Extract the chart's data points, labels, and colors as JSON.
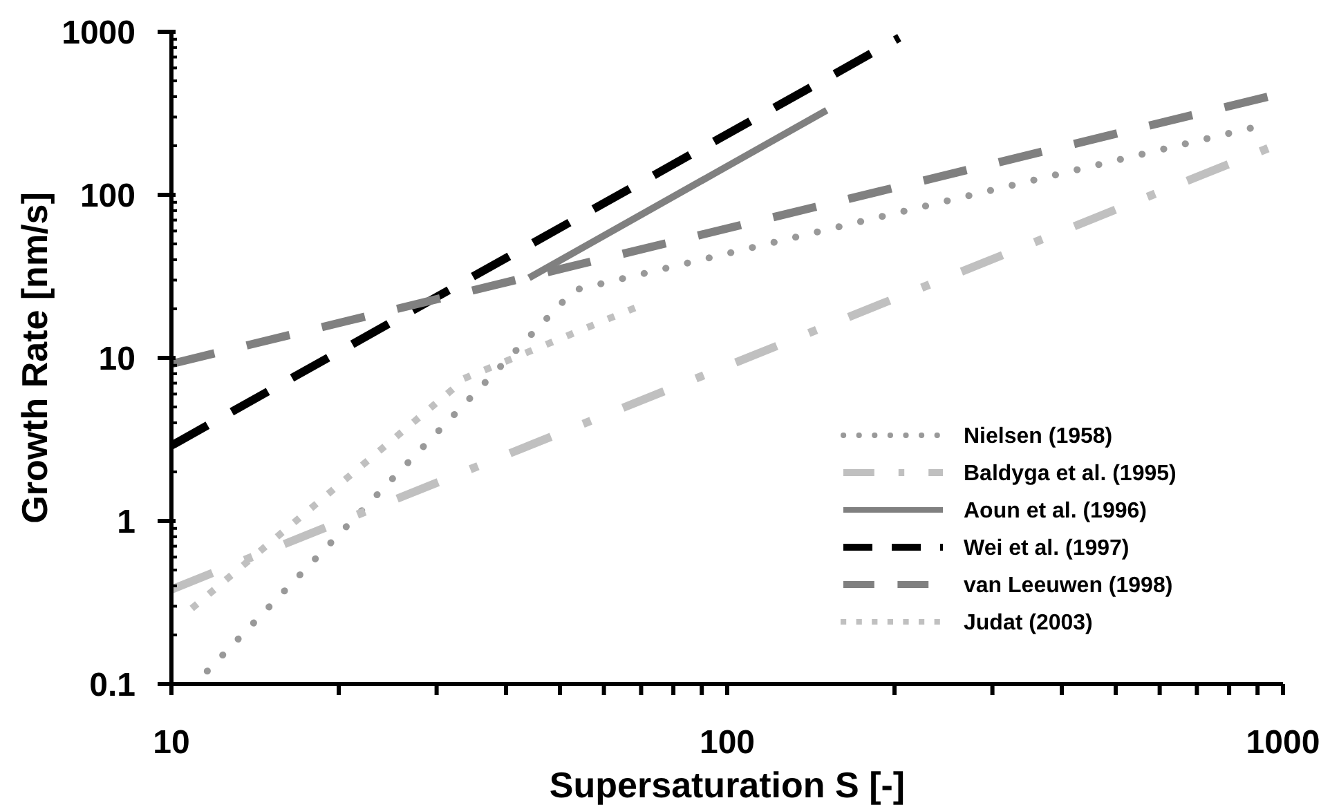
{
  "chart_data": {
    "type": "line",
    "xlabel": "Supersaturation S [-]",
    "ylabel": "Growth Rate [nm/s]",
    "log": "xy",
    "grid": false,
    "legend": "bottom right",
    "xlim": [
      10,
      1000
    ],
    "ylim": [
      0.1,
      1000
    ],
    "xticks": [
      10,
      {
        "value": 20,
        "label": null
      },
      {
        "value": 30,
        "label": null
      },
      {
        "value": 40,
        "label": null
      },
      {
        "value": 50,
        "label": null
      },
      {
        "value": 60,
        "label": null
      },
      {
        "value": 70,
        "label": null
      },
      {
        "value": 80,
        "label": null
      },
      {
        "value": 90,
        "label": null
      },
      100,
      {
        "value": 200,
        "label": null
      },
      {
        "value": 300,
        "label": null
      },
      {
        "value": 400,
        "label": null
      },
      {
        "value": 500,
        "label": null
      },
      {
        "value": 600,
        "label": null
      },
      {
        "value": 700,
        "label": null
      },
      {
        "value": 800,
        "label": null
      },
      {
        "value": 900,
        "label": null
      },
      1000
    ],
    "yticks": [
      0.1,
      {
        "value": 0.2,
        "label": null
      },
      {
        "value": 0.3,
        "label": null
      },
      {
        "value": 0.4,
        "label": null
      },
      {
        "value": 0.5,
        "label": null
      },
      {
        "value": 0.6,
        "label": null
      },
      {
        "value": 0.7,
        "label": null
      },
      {
        "value": 0.8,
        "label": null
      },
      {
        "value": 0.9,
        "label": null
      },
      1,
      {
        "value": 2,
        "label": null
      },
      {
        "value": 3,
        "label": null
      },
      {
        "value": 4,
        "label": null
      },
      {
        "value": 5,
        "label": null
      },
      {
        "value": 6,
        "label": null
      },
      {
        "value": 7,
        "label": null
      },
      {
        "value": 8,
        "label": null
      },
      {
        "value": 9,
        "label": null
      },
      10,
      {
        "value": 20,
        "label": null
      },
      {
        "value": 30,
        "label": null
      },
      {
        "value": 40,
        "label": null
      },
      {
        "value": 50,
        "label": null
      },
      {
        "value": 60,
        "label": null
      },
      {
        "value": 70,
        "label": null
      },
      {
        "value": 80,
        "label": null
      },
      {
        "value": 90,
        "label": null
      },
      100,
      {
        "value": 200,
        "label": null
      },
      {
        "value": 300,
        "label": null
      },
      {
        "value": 400,
        "label": null
      },
      {
        "value": 500,
        "label": null
      },
      {
        "value": 600,
        "label": null
      },
      {
        "value": 700,
        "label": null
      },
      {
        "value": 800,
        "label": null
      },
      {
        "value": 900,
        "label": null
      },
      1000
    ],
    "series": [
      {
        "name": "Nielsen (1958)",
        "color": "#999999",
        "line_style": "dotted",
        "x": [
          11.6,
          53,
          890
        ],
        "values": [
          0.12,
          26,
          260
        ]
      },
      {
        "name": "Baldyga et al. (1995)",
        "color": "#c0c0c0",
        "line_style": "dashdot",
        "x": [
          10,
          1000
        ],
        "values": [
          0.38,
          210
        ]
      },
      {
        "name": "Aoun et al. (1996)",
        "color": "#808080",
        "line_style": "solid",
        "x": [
          44,
          151
        ],
        "values": [
          31,
          330
        ]
      },
      {
        "name": "Wei et al. (1997)",
        "color": "#000000",
        "line_style": "dashed",
        "x": [
          10,
          204
        ],
        "values": [
          2.9,
          920
        ]
      },
      {
        "name": "van Leeuwen (1998)",
        "color": "#808080",
        "line_style": "dashed",
        "x": [
          10,
          940
        ],
        "values": [
          9.2,
          400
        ]
      },
      {
        "name": "Judat (2003)",
        "color": "#c0c0c0",
        "line_style": "dotted",
        "x": [
          11,
          34,
          69
        ],
        "values": [
          0.3,
          7.6,
          20.6
        ]
      }
    ]
  }
}
